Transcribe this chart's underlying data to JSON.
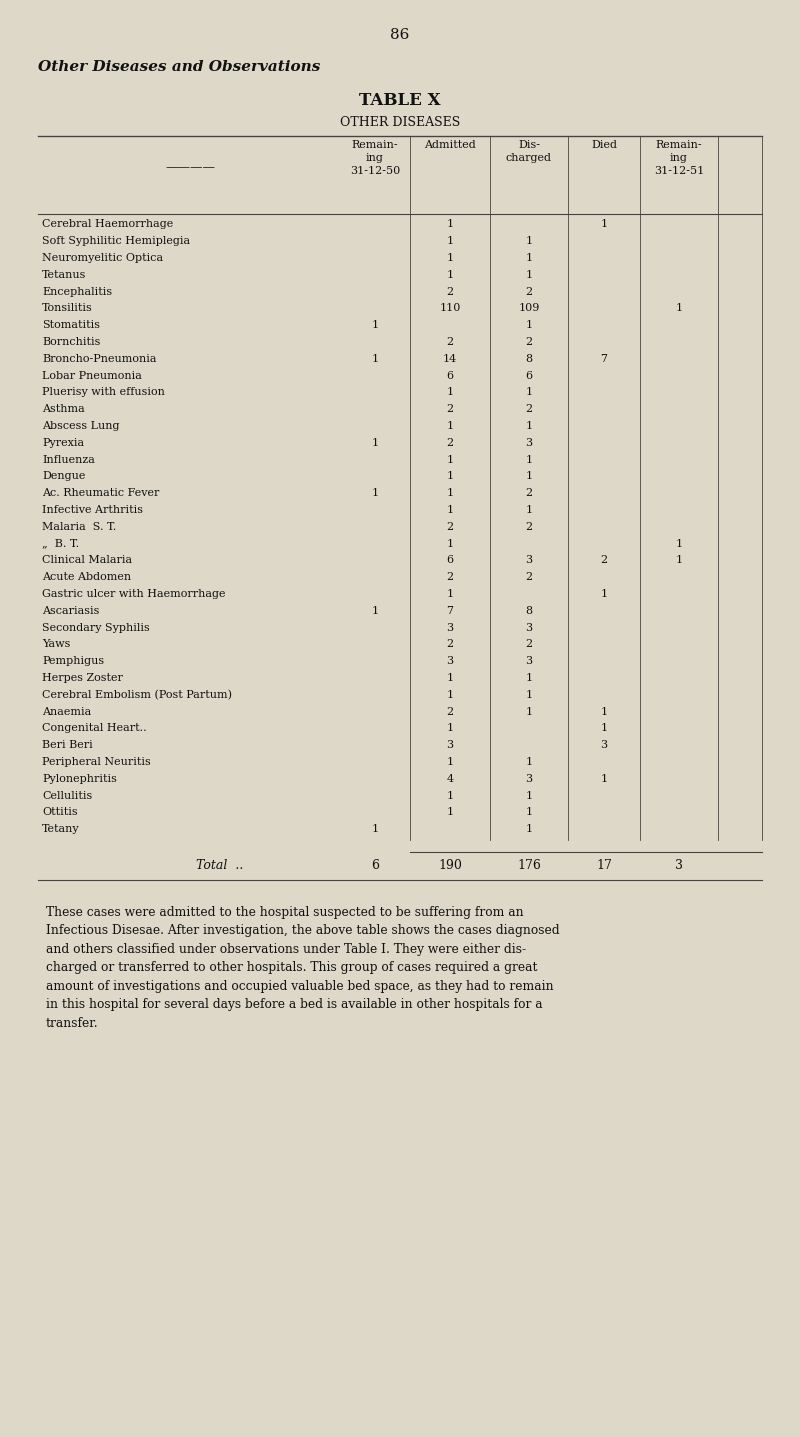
{
  "page_number": "86",
  "heading_italic": "Other Diseases and Observations",
  "title": "TABLE X",
  "subtitle": "OTHER DISEASES",
  "bg_color": "#ddd8c8",
  "columns": [
    "Remain-\ning\n31-12-50",
    "Admitted",
    "Dis-\ncharged",
    "Died",
    "Remain-\ning\n31-12-51"
  ],
  "rows": [
    [
      "Cerebral Haemorrhage",
      "",
      "1",
      "",
      "1",
      ""
    ],
    [
      "Soft Syphilitic Hemiplegia",
      "",
      "1",
      "1",
      "",
      ""
    ],
    [
      "Neuromyelitic Optica",
      "",
      "1",
      "1",
      "",
      ""
    ],
    [
      "Tetanus",
      "",
      "1",
      "1",
      "",
      ""
    ],
    [
      "Encephalitis",
      "",
      "2",
      "2",
      "",
      ""
    ],
    [
      "Tonsilitis",
      "",
      "110",
      "109",
      "",
      "1"
    ],
    [
      "Stomatitis",
      "1",
      "",
      "1",
      "",
      ""
    ],
    [
      "Bornchitis",
      "",
      "2",
      "2",
      "",
      ""
    ],
    [
      "Broncho-Pneumonia",
      "1",
      "14",
      "8",
      "7",
      ""
    ],
    [
      "Lobar Pneumonia",
      "",
      "6",
      "6",
      "",
      ""
    ],
    [
      "Pluerisy with effusion",
      "",
      "1",
      "1",
      "",
      ""
    ],
    [
      "Asthma",
      "",
      "2",
      "2",
      "",
      ""
    ],
    [
      "Abscess Lung",
      "",
      "1",
      "1",
      "",
      ""
    ],
    [
      "Pyrexia",
      "1",
      "2",
      "3",
      "",
      ""
    ],
    [
      "Influenza",
      "",
      "1",
      "1",
      "",
      ""
    ],
    [
      "Dengue",
      "",
      "1",
      "1",
      "",
      ""
    ],
    [
      "Ac. Rheumatic Fever",
      "1",
      "1",
      "2",
      "",
      ""
    ],
    [
      "Infective Arthritis",
      "",
      "1",
      "1",
      "",
      ""
    ],
    [
      "Malaria  S. T.",
      "",
      "2",
      "2",
      "",
      ""
    ],
    [
      "„  B. T.",
      "",
      "1",
      "",
      "",
      "1"
    ],
    [
      "Clinical Malaria",
      "",
      "6",
      "3",
      "2",
      "1"
    ],
    [
      "Acute Abdomen",
      "",
      "2",
      "2",
      "",
      ""
    ],
    [
      "Gastric ulcer with Haemorrhage",
      "",
      "1",
      "",
      "1",
      ""
    ],
    [
      "Ascariasis",
      "1",
      "7",
      "8",
      "",
      ""
    ],
    [
      "Secondary Syphilis",
      "",
      "3",
      "3",
      "",
      ""
    ],
    [
      "Yaws",
      "",
      "2",
      "2",
      "",
      ""
    ],
    [
      "Pemphigus",
      "",
      "3",
      "3",
      "",
      ""
    ],
    [
      "Herpes Zoster",
      "",
      "1",
      "1",
      "",
      ""
    ],
    [
      "Cerebral Embolism (Post Partum)",
      "",
      "1",
      "1",
      "",
      ""
    ],
    [
      "Anaemia",
      "",
      "2",
      "1",
      "1",
      ""
    ],
    [
      "Congenital Heart..",
      "",
      "1",
      "",
      "1",
      ""
    ],
    [
      "Beri Beri",
      "",
      "3",
      "",
      "3",
      ""
    ],
    [
      "Peripheral Neuritis",
      "",
      "1",
      "1",
      "",
      ""
    ],
    [
      "Pylonephritis",
      "",
      "4",
      "3",
      "1",
      ""
    ],
    [
      "Cellulitis",
      "",
      "1",
      "1",
      "",
      ""
    ],
    [
      "Ottitis",
      "",
      "1",
      "1",
      "",
      ""
    ],
    [
      "Tetany",
      "1",
      "",
      "1",
      "",
      ""
    ]
  ],
  "total_row": [
    "Total",
    "6",
    "190",
    "176",
    "17",
    "3"
  ],
  "footer_text": "These cases were admitted to the hospital suspected to be suffering from an\nInfectious Disesae. After investigation, the above table shows the cases diagnosed\nand others classified under observations under Table I. They were either dis-\ncharged or transferred to other hospitals. This group of cases required a great\namount of investigations and occupied valuable bed space, as they had to remain\nin this hospital for several days before a bed is available in other hospitals for a\ntransfer."
}
